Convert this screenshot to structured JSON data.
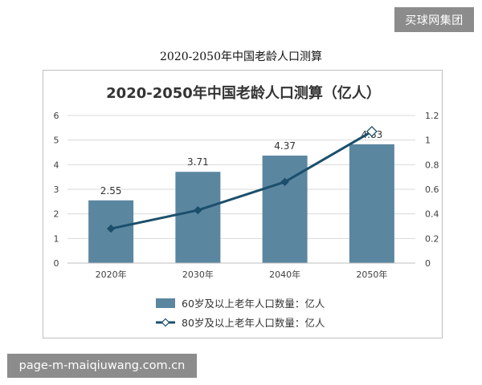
{
  "watermarks": {
    "brand": "买球网集团",
    "site": "page-m-maiqiuwang.com.cn"
  },
  "page": {
    "caption": "2020-2050年中国老龄人口测算"
  },
  "colors": {
    "bar": "#5b86a0",
    "line": "#1b4f6b",
    "grid": "#d9d9d9",
    "axis_text": "#404040"
  },
  "chart_data": {
    "type": "bar",
    "title": "2020-2050年中国老龄人口测算（亿人）",
    "categories": [
      "2020年",
      "2030年",
      "2040年",
      "2050年"
    ],
    "ylim": [
      0,
      6
    ],
    "y_ticks": [
      0,
      1,
      2,
      3,
      4,
      5,
      6
    ],
    "y2lim": [
      0,
      1.2
    ],
    "y2_ticks": [
      "0",
      "0.2",
      "0.4",
      "0.6",
      "0.8",
      "1",
      "1.2"
    ],
    "grid": true,
    "legend_position": "bottom",
    "series": [
      {
        "name": "60岁及以上老年人口数量：亿人",
        "type": "bar",
        "axis": "left",
        "values": [
          2.55,
          3.71,
          4.37,
          4.83
        ],
        "data_labels": [
          "2.55",
          "3.71",
          "4.37",
          "4.83"
        ]
      },
      {
        "name": "80岁及以上老年人口数量：亿人",
        "type": "line",
        "axis": "right",
        "marker": "diamond",
        "values": [
          0.28,
          0.43,
          0.66,
          1.07
        ]
      }
    ]
  }
}
